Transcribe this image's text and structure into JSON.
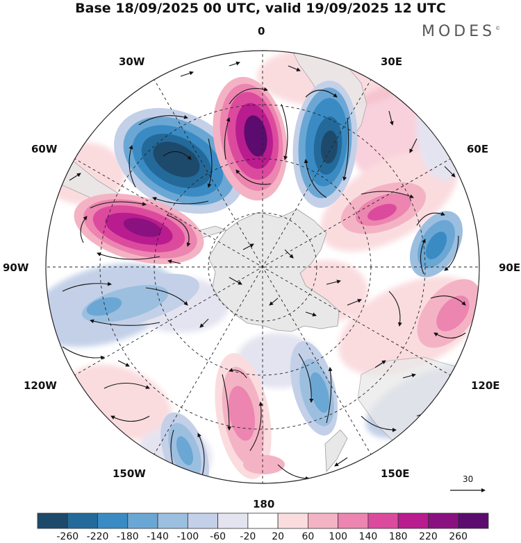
{
  "title": "Base 18/09/2025 00 UTC, valid 19/09/2025 12 UTC",
  "logo": "MODES",
  "logo_mark": "©",
  "longitude_labels": {
    "lon_0": "0",
    "lon_30e": "30E",
    "lon_60e": "60E",
    "lon_90e": "90E",
    "lon_120e": "120E",
    "lon_150e": "150E",
    "lon_180": "180",
    "lon_150w": "150W",
    "lon_120w": "120W",
    "lon_90w": "90W",
    "lon_60w": "60W",
    "lon_30w": "30W"
  },
  "reference_vector": "30",
  "colorbar": {
    "colors": [
      "#1d4a6b",
      "#236a9b",
      "#3a8bc4",
      "#6ba7d4",
      "#9cbfe0",
      "#c3d0e8",
      "#e4e4f1",
      "#ffffff",
      "#fadcdf",
      "#f4b3c4",
      "#ec85b0",
      "#dc4a9e",
      "#b81c8e",
      "#8a1180",
      "#5b0c6e"
    ],
    "labels": [
      "-260",
      "-220",
      "-180",
      "-140",
      "-100",
      "-60",
      "-20",
      "20",
      "60",
      "100",
      "140",
      "180",
      "220",
      "260"
    ]
  },
  "field_colors": {
    "land": "#e8e8e8",
    "coast": "#9a9a9a",
    "arrow": "#111111"
  }
}
